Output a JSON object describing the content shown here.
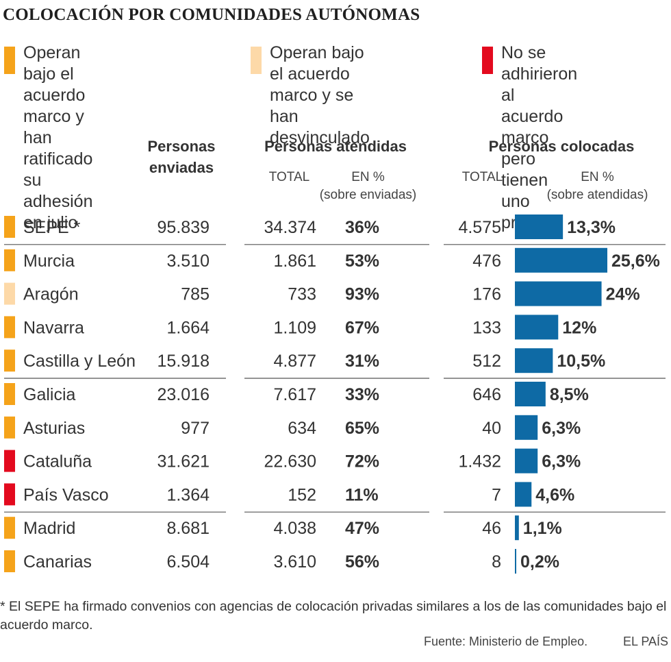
{
  "title": "COLOCACIÓN POR COMUNIDADES AUTÓNOMAS",
  "legend": [
    {
      "label": "Operan bajo el acuerdo marco y han ratificado su adhesión en julio",
      "lines": [
        "Operan bajo el acuerdo",
        "marco y han ratificado",
        "su adhesión en julio"
      ],
      "color": "#f5a31a"
    },
    {
      "label": "Operan bajo el acuerdo marco y se han desvinculado",
      "lines": [
        "Operan bajo el acuerdo",
        "marco y se han",
        "desvinculado"
      ],
      "color": "#fdd9a8"
    },
    {
      "label": "No se adhirieron al acuerdo marco pero tienen uno propio",
      "lines": [
        "No se adhirieron al",
        "acuerdo marco pero",
        "tienen uno propio"
      ],
      "color": "#e30a1e"
    }
  ],
  "headers": {
    "enviadas": [
      "Personas",
      "enviadas"
    ],
    "atendidas": "Personas atendidas",
    "colocadas": "Personas colocadas",
    "total_atendidas": "TOTAL",
    "pct_atendidas": [
      "EN %",
      "(sobre enviadas)"
    ],
    "total_colocadas": "TOTAL",
    "pct_colocadas": [
      "EN %",
      "(sobre atendidas)"
    ]
  },
  "colors": {
    "bar": "#0e6aa5",
    "ratificado": "#f5a31a",
    "desvinculado": "#fdd9a8",
    "propio": "#e30a1e",
    "rule": "#555555"
  },
  "chart_data": {
    "type": "table",
    "title": "COLOCACIÓN POR COMUNIDADES AUTÓNOMAS",
    "columns": [
      "Personas enviadas",
      "Personas atendidas TOTAL",
      "Personas atendidas EN % (sobre enviadas)",
      "Personas colocadas TOTAL",
      "Personas colocadas EN % (sobre atendidas)"
    ],
    "bar_axis_max": 25.6,
    "rows": [
      {
        "name": "SEPE *",
        "category": "ratificado",
        "enviadas": "95.839",
        "atendidas": "34.374",
        "pct_atendidas": "36%",
        "colocadas": "4.575",
        "pct_colocadas": 13.3,
        "pct_colocadas_label": "13,3%"
      },
      {
        "name": "Murcia",
        "category": "ratificado",
        "enviadas": "3.510",
        "atendidas": "1.861",
        "pct_atendidas": "53%",
        "colocadas": "476",
        "pct_colocadas": 25.6,
        "pct_colocadas_label": "25,6%"
      },
      {
        "name": "Aragón",
        "category": "desvinculado",
        "enviadas": "785",
        "atendidas": "733",
        "pct_atendidas": "93%",
        "colocadas": "176",
        "pct_colocadas": 24,
        "pct_colocadas_label": "24%"
      },
      {
        "name": "Navarra",
        "category": "ratificado",
        "enviadas": "1.664",
        "atendidas": "1.109",
        "pct_atendidas": "67%",
        "colocadas": "133",
        "pct_colocadas": 12,
        "pct_colocadas_label": "12%"
      },
      {
        "name": "Castilla y León",
        "category": "ratificado",
        "enviadas": "15.918",
        "atendidas": "4.877",
        "pct_atendidas": "31%",
        "colocadas": "512",
        "pct_colocadas": 10.5,
        "pct_colocadas_label": "10,5%"
      },
      {
        "name": "Galicia",
        "category": "ratificado",
        "enviadas": "23.016",
        "atendidas": "7.617",
        "pct_atendidas": "33%",
        "colocadas": "646",
        "pct_colocadas": 8.5,
        "pct_colocadas_label": "8,5%"
      },
      {
        "name": "Asturias",
        "category": "ratificado",
        "enviadas": "977",
        "atendidas": "634",
        "pct_atendidas": "65%",
        "colocadas": "40",
        "pct_colocadas": 6.3,
        "pct_colocadas_label": "6,3%"
      },
      {
        "name": "Cataluña",
        "category": "propio",
        "enviadas": "31.621",
        "atendidas": "22.630",
        "pct_atendidas": "72%",
        "colocadas": "1.432",
        "pct_colocadas": 6.3,
        "pct_colocadas_label": "6,3%"
      },
      {
        "name": "País Vasco",
        "category": "propio",
        "enviadas": "1.364",
        "atendidas": "152",
        "pct_atendidas": "11%",
        "colocadas": "7",
        "pct_colocadas": 4.6,
        "pct_colocadas_label": "4,6%"
      },
      {
        "name": "Madrid",
        "category": "ratificado",
        "enviadas": "8.681",
        "atendidas": "4.038",
        "pct_atendidas": "47%",
        "colocadas": "46",
        "pct_colocadas": 1.1,
        "pct_colocadas_label": "1,1%"
      },
      {
        "name": "Canarias",
        "category": "ratificado",
        "enviadas": "6.504",
        "atendidas": "3.610",
        "pct_atendidas": "56%",
        "colocadas": "8",
        "pct_colocadas": 0.2,
        "pct_colocadas_label": "0,2%"
      }
    ],
    "group_separators_after": [
      "SEPE *",
      "Castilla y León",
      "País Vasco"
    ]
  },
  "footnote": "* El SEPE ha firmado  convenios con agencias de colocación privadas similares a los de las comunidades bajo el acuerdo marco.",
  "source": "Fuente: Ministerio de Empleo.",
  "brand": "EL PAÍS"
}
